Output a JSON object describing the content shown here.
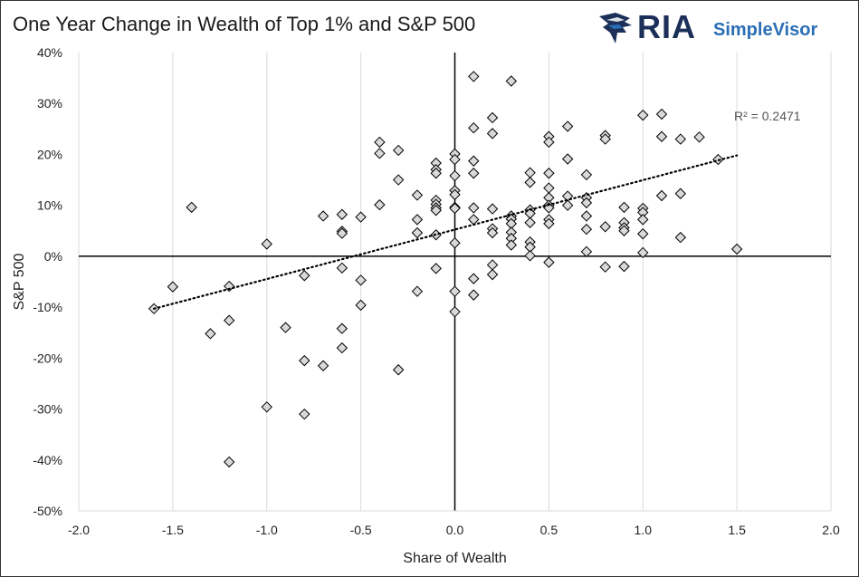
{
  "header": {
    "title": "One Year Change in Wealth of Top 1% and S&P 500"
  },
  "logo": {
    "brand": "RIA",
    "product": "SimpleVisor",
    "mark_icon": "eagle-icon",
    "colors": {
      "brand": "#1b2f58",
      "product": "#2a6fb5"
    }
  },
  "chart_data": {
    "type": "scatter",
    "title": "One Year Change in Wealth of Top 1% and S&P 500",
    "xlabel": "Share of Wealth",
    "ylabel": "S&P 500",
    "xlim": [
      -2.0,
      2.0
    ],
    "ylim": [
      -50,
      40
    ],
    "x_ticks": [
      -2.0,
      -1.5,
      -1.0,
      -0.5,
      0.0,
      0.5,
      1.0,
      1.5,
      2.0
    ],
    "x_tick_labels": [
      "-2.0",
      "-1.5",
      "-1.0",
      "-0.5",
      "0.0",
      "0.5",
      "1.0",
      "1.5",
      "2.0"
    ],
    "y_ticks": [
      40,
      30,
      20,
      10,
      0,
      -10,
      -20,
      -30,
      -40,
      -50
    ],
    "y_tick_labels": [
      "40%",
      "30%",
      "20%",
      "10%",
      "0%",
      "-10%",
      "-20%",
      "-30%",
      "-40%",
      "-50%"
    ],
    "grid": "vertical",
    "marker": "diamond",
    "marker_color": "#d9d9d9",
    "trendline": {
      "type": "linear",
      "style": "dotted",
      "r2_label": "R² = 0.2471",
      "x_range": [
        -1.6,
        1.5
      ],
      "y_at_start": -10.3,
      "y_at_end": 19.8
    },
    "points": [
      [
        -1.6,
        -10.3
      ],
      [
        -1.5,
        -6.0
      ],
      [
        -1.4,
        9.6
      ],
      [
        -1.3,
        -15.2
      ],
      [
        -1.2,
        -5.9
      ],
      [
        -1.2,
        -12.6
      ],
      [
        -1.2,
        -40.4
      ],
      [
        -1.0,
        2.4
      ],
      [
        -1.0,
        -29.6
      ],
      [
        -0.9,
        -14.0
      ],
      [
        -0.8,
        -3.8
      ],
      [
        -0.8,
        -20.5
      ],
      [
        -0.8,
        -31.0
      ],
      [
        -0.7,
        7.9
      ],
      [
        -0.7,
        -21.5
      ],
      [
        -0.6,
        8.2
      ],
      [
        -0.6,
        4.9
      ],
      [
        -0.6,
        4.5
      ],
      [
        -0.6,
        -2.3
      ],
      [
        -0.6,
        -14.2
      ],
      [
        -0.6,
        -18.0
      ],
      [
        -0.5,
        7.7
      ],
      [
        -0.5,
        -4.7
      ],
      [
        -0.5,
        -9.6
      ],
      [
        -0.4,
        22.4
      ],
      [
        -0.4,
        20.2
      ],
      [
        -0.4,
        10.1
      ],
      [
        -0.3,
        20.8
      ],
      [
        -0.3,
        15.0
      ],
      [
        -0.3,
        -22.3
      ],
      [
        -0.2,
        12.0
      ],
      [
        -0.2,
        7.2
      ],
      [
        -0.2,
        4.6
      ],
      [
        -0.2,
        -6.9
      ],
      [
        -0.1,
        18.3
      ],
      [
        -0.1,
        17.0
      ],
      [
        -0.1,
        16.3
      ],
      [
        -0.1,
        11.0
      ],
      [
        -0.1,
        10.2
      ],
      [
        -0.1,
        9.5
      ],
      [
        -0.1,
        9.0
      ],
      [
        -0.1,
        4.2
      ],
      [
        -0.1,
        -2.4
      ],
      [
        0.0,
        20.1
      ],
      [
        0.0,
        19.0
      ],
      [
        0.0,
        15.8
      ],
      [
        0.0,
        12.9
      ],
      [
        0.0,
        12.1
      ],
      [
        0.0,
        9.6
      ],
      [
        0.0,
        9.4
      ],
      [
        0.0,
        2.6
      ],
      [
        0.0,
        -6.9
      ],
      [
        0.0,
        -10.9
      ],
      [
        0.1,
        35.3
      ],
      [
        0.1,
        25.2
      ],
      [
        0.1,
        18.7
      ],
      [
        0.1,
        16.3
      ],
      [
        0.1,
        9.5
      ],
      [
        0.1,
        7.2
      ],
      [
        0.1,
        -4.4
      ],
      [
        0.1,
        -7.6
      ],
      [
        0.2,
        27.2
      ],
      [
        0.2,
        24.1
      ],
      [
        0.2,
        9.3
      ],
      [
        0.2,
        5.4
      ],
      [
        0.2,
        4.6
      ],
      [
        0.2,
        -1.7
      ],
      [
        0.2,
        -3.6
      ],
      [
        0.3,
        34.4
      ],
      [
        0.3,
        7.9
      ],
      [
        0.3,
        7.3
      ],
      [
        0.3,
        6.4
      ],
      [
        0.3,
        4.7
      ],
      [
        0.3,
        3.5
      ],
      [
        0.3,
        2.2
      ],
      [
        0.4,
        16.4
      ],
      [
        0.4,
        14.5
      ],
      [
        0.4,
        9.1
      ],
      [
        0.4,
        8.4
      ],
      [
        0.4,
        6.6
      ],
      [
        0.4,
        2.8
      ],
      [
        0.4,
        1.8
      ],
      [
        0.4,
        0.1
      ],
      [
        0.5,
        23.5
      ],
      [
        0.5,
        22.4
      ],
      [
        0.5,
        16.3
      ],
      [
        0.5,
        13.4
      ],
      [
        0.5,
        11.5
      ],
      [
        0.5,
        10.0
      ],
      [
        0.5,
        9.5
      ],
      [
        0.5,
        7.2
      ],
      [
        0.5,
        6.4
      ],
      [
        0.5,
        -1.2
      ],
      [
        0.6,
        25.5
      ],
      [
        0.6,
        19.1
      ],
      [
        0.6,
        11.8
      ],
      [
        0.6,
        10.0
      ],
      [
        0.7,
        16.0
      ],
      [
        0.7,
        11.5
      ],
      [
        0.7,
        10.5
      ],
      [
        0.7,
        7.9
      ],
      [
        0.7,
        5.3
      ],
      [
        0.7,
        0.9
      ],
      [
        0.8,
        23.7
      ],
      [
        0.8,
        23.0
      ],
      [
        0.8,
        5.8
      ],
      [
        0.8,
        -2.1
      ],
      [
        0.9,
        9.6
      ],
      [
        0.9,
        6.6
      ],
      [
        0.9,
        5.6
      ],
      [
        0.9,
        5.0
      ],
      [
        0.9,
        -2.0
      ],
      [
        1.0,
        27.7
      ],
      [
        1.0,
        9.4
      ],
      [
        1.0,
        8.6
      ],
      [
        1.0,
        7.2
      ],
      [
        1.0,
        4.4
      ],
      [
        1.0,
        0.7
      ],
      [
        1.1,
        27.9
      ],
      [
        1.1,
        23.5
      ],
      [
        1.1,
        11.9
      ],
      [
        1.2,
        23.0
      ],
      [
        1.2,
        12.3
      ],
      [
        1.2,
        3.7
      ],
      [
        1.3,
        23.4
      ],
      [
        1.4,
        19.0
      ],
      [
        1.5,
        1.4
      ]
    ]
  }
}
